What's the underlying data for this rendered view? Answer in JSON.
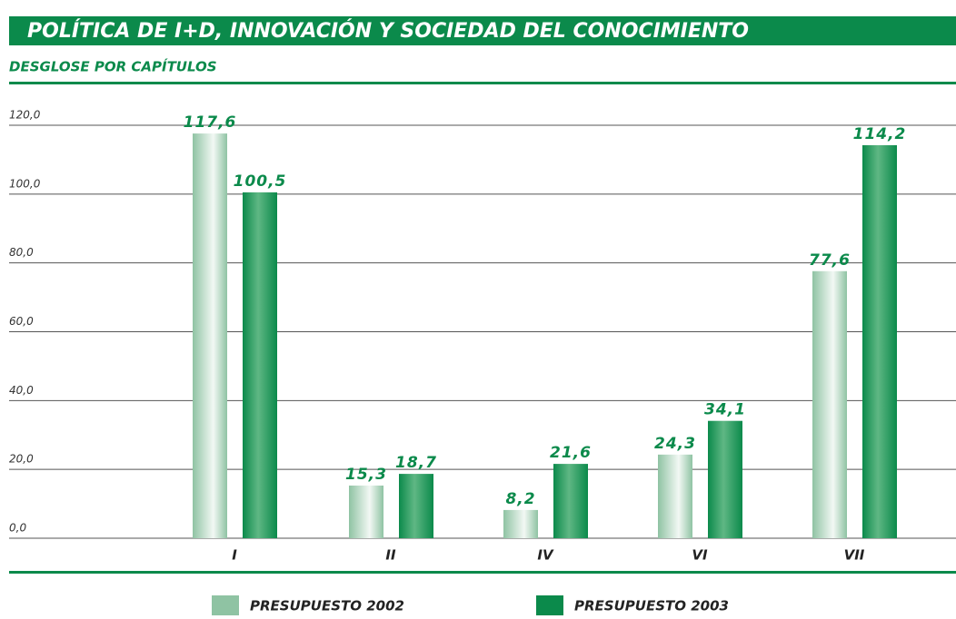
{
  "chart_data": {
    "type": "bar",
    "title": "POLÍTICA DE I+D, INNOVACIÓN Y SOCIEDAD DEL CONOCIMIENTO",
    "subtitle": "DESGLOSE POR CAPÍTULOS",
    "categories": [
      "I",
      "II",
      "IV",
      "VI",
      "VII"
    ],
    "series": [
      {
        "name": "PRESUPUESTO 2002",
        "color": "#8fc3a3",
        "values": [
          117.6,
          15.3,
          8.2,
          24.3,
          77.6
        ],
        "value_labels": [
          "117,6",
          "15,3",
          "8,2",
          "24,3",
          "77,6"
        ]
      },
      {
        "name": "PRESUPUESTO 2003",
        "color": "#0b8a4b",
        "values": [
          100.5,
          18.7,
          21.6,
          34.1,
          114.2
        ],
        "value_labels": [
          "100,5",
          "18,7",
          "21,6",
          "34,1",
          "114,2"
        ]
      }
    ],
    "ylim": [
      0,
      120
    ],
    "yticks": [
      {
        "value": 0,
        "label": "0,0"
      },
      {
        "value": 20,
        "label": "20,0"
      },
      {
        "value": 40,
        "label": "40,0"
      },
      {
        "value": 60,
        "label": "60,0"
      },
      {
        "value": 80,
        "label": "80,0"
      },
      {
        "value": 100,
        "label": "100,0"
      },
      {
        "value": 120,
        "label": "120,0"
      }
    ],
    "grid": true
  }
}
